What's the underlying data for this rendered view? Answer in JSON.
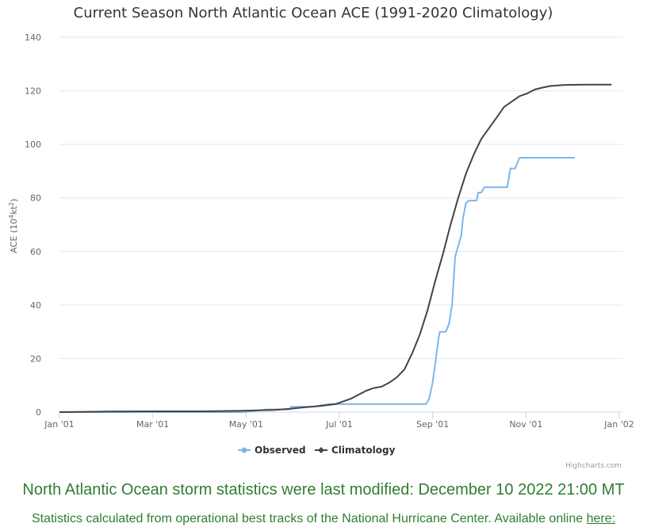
{
  "chart_data": {
    "type": "line",
    "title": "Current Season North Atlantic Ocean ACE (1991-2020 Climatology)",
    "ylabel_main": "ACE (10",
    "ylabel_sup": "4",
    "ylabel_rest": "kt",
    "ylabel_sup2": "2",
    "ylabel_close": ")",
    "ylim": [
      0,
      140
    ],
    "y_ticks": [
      "0",
      "20",
      "40",
      "60",
      "80",
      "100",
      "120",
      "140"
    ],
    "x_ticks": [
      "Jan '01",
      "Mar '01",
      "May '01",
      "Jul '01",
      "Sep '01",
      "Nov '01",
      "Jan '02"
    ],
    "x_range_days": [
      0,
      365
    ],
    "grid": true,
    "legend_position": "bottom-center",
    "credit": "Highcharts.com",
    "series": [
      {
        "name": "Observed",
        "color": "#7cb5ec",
        "points": [
          [
            0,
            0
          ],
          [
            60,
            0
          ],
          [
            120,
            0
          ],
          [
            135,
            1
          ],
          [
            150,
            1
          ],
          [
            151,
            2
          ],
          [
            165,
            2
          ],
          [
            170,
            2.5
          ],
          [
            176,
            3
          ],
          [
            200,
            3
          ],
          [
            220,
            3
          ],
          [
            239,
            3
          ],
          [
            241,
            5
          ],
          [
            243,
            10
          ],
          [
            245,
            18
          ],
          [
            247,
            27
          ],
          [
            248,
            30
          ],
          [
            252,
            30
          ],
          [
            254,
            33
          ],
          [
            256,
            40
          ],
          [
            258,
            58
          ],
          [
            260,
            62
          ],
          [
            262,
            66
          ],
          [
            263,
            72
          ],
          [
            265,
            78
          ],
          [
            267,
            79
          ],
          [
            272,
            79
          ],
          [
            273,
            82
          ],
          [
            275,
            82
          ],
          [
            277,
            84
          ],
          [
            280,
            84
          ],
          [
            290,
            84
          ],
          [
            292,
            84
          ],
          [
            294,
            91
          ],
          [
            297,
            91
          ],
          [
            300,
            95
          ],
          [
            320,
            95
          ],
          [
            336,
            95
          ]
        ]
      },
      {
        "name": "Climatology",
        "color": "#434348",
        "points": [
          [
            0,
            0
          ],
          [
            30,
            0.2
          ],
          [
            60,
            0.3
          ],
          [
            90,
            0.3
          ],
          [
            120,
            0.5
          ],
          [
            140,
            0.8
          ],
          [
            150,
            1.2
          ],
          [
            160,
            1.8
          ],
          [
            170,
            2.3
          ],
          [
            180,
            3
          ],
          [
            190,
            5
          ],
          [
            200,
            8
          ],
          [
            205,
            9
          ],
          [
            210,
            9.5
          ],
          [
            215,
            11
          ],
          [
            220,
            13
          ],
          [
            225,
            16
          ],
          [
            230,
            22
          ],
          [
            235,
            29
          ],
          [
            240,
            38
          ],
          [
            245,
            49
          ],
          [
            250,
            59
          ],
          [
            255,
            70
          ],
          [
            260,
            80
          ],
          [
            265,
            89
          ],
          [
            270,
            96
          ],
          [
            275,
            102
          ],
          [
            280,
            106
          ],
          [
            285,
            110
          ],
          [
            290,
            114
          ],
          [
            295,
            116
          ],
          [
            300,
            118
          ],
          [
            305,
            119
          ],
          [
            310,
            120.5
          ],
          [
            315,
            121.2
          ],
          [
            320,
            121.8
          ],
          [
            330,
            122.2
          ],
          [
            345,
            122.3
          ],
          [
            360,
            122.3
          ]
        ]
      }
    ]
  },
  "footer": {
    "modified_text": "North Atlantic Ocean storm statistics were last modified: December 10 2022 21:00 MT",
    "source_text": "Statistics calculated from operational best tracks of the National Hurricane Center. Available online ",
    "link_text": "here:"
  }
}
